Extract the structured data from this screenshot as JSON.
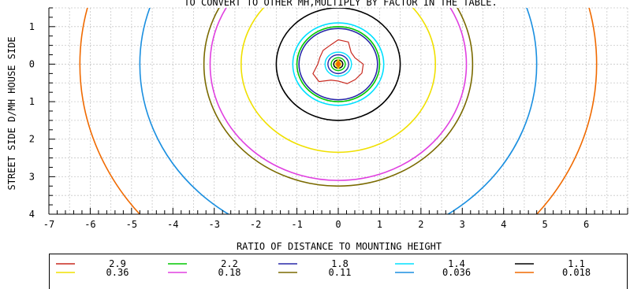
{
  "chart_data": {
    "type": "contour",
    "title": "TO CONVERT TO OTHER MH,MULTIPLY BY FACTOR IN THE TABLE.",
    "xlabel": "RATIO OF DISTANCE TO MOUNTING HEIGHT",
    "ylabel": "STREET SIDE  D/MH  HOUSE SIDE",
    "x_range": [
      -7,
      7
    ],
    "y_range": [
      -1.5,
      4
    ],
    "x_ticks": [
      -7,
      -6,
      -5,
      -4,
      -3,
      -2,
      -1,
      0,
      1,
      2,
      3,
      4,
      5,
      6
    ],
    "x_tick_labels": [
      "-7",
      "-6",
      "-5",
      "-4",
      "-3",
      "-2",
      "-1",
      "0",
      "1",
      "2",
      "3",
      "4",
      "5",
      "6"
    ],
    "y_ticks": [
      -1,
      0,
      1,
      2,
      3,
      4
    ],
    "y_tick_labels": [
      "1",
      "0",
      "1",
      "2",
      "3",
      "4"
    ],
    "grid": true,
    "center": [
      0,
      0
    ],
    "contours": [
      {
        "label": "2.9",
        "color": "#c8281e",
        "radius": 0.55,
        "irregular": true
      },
      {
        "label": "2.2",
        "color": "#00c800",
        "radius": 1.0
      },
      {
        "label": "1.8",
        "color": "#2828a8",
        "radius": 0.95
      },
      {
        "label": "1.4",
        "color": "#00e0ff",
        "radius": 1.1
      },
      {
        "label": "1.1",
        "color": "#000000",
        "radius": 1.5
      },
      {
        "label": "0.36",
        "color": "#f0e000",
        "radius": 2.35
      },
      {
        "label": "0.18",
        "color": "#e040e0",
        "radius": 3.1
      },
      {
        "label": "0.11",
        "color": "#7a6a00",
        "radius": 3.25
      },
      {
        "label": "0.036",
        "color": "#1a8fe0",
        "radius": 4.8
      },
      {
        "label": "0.018",
        "color": "#f06a00",
        "radius": 6.25
      }
    ],
    "legend": {
      "placement": "bottom",
      "rows": [
        [
          "2.9",
          "2.2",
          "1.8",
          "1.4",
          "1.1"
        ],
        [
          "0.36",
          "0.18",
          "0.11",
          "0.036",
          "0.018"
        ]
      ]
    }
  }
}
